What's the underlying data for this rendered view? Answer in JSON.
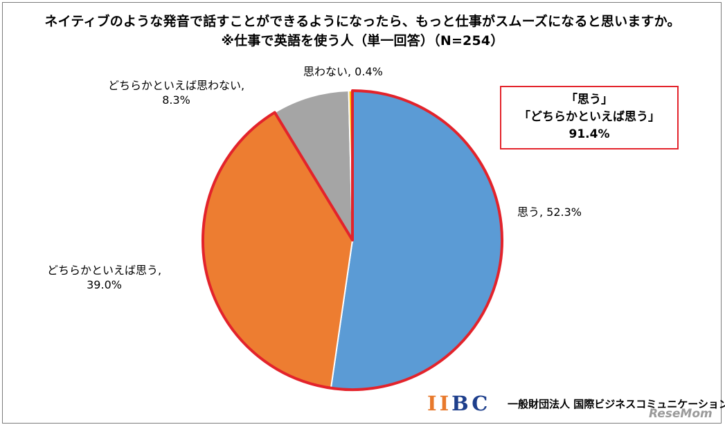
{
  "chart_data": {
    "type": "pie",
    "title": "ネイティブのような発音で話すことができるようになったら、もっと仕事がスムーズになると思いますか。",
    "subtitle": "※仕事で英語を使う人（単一回答）（N=254）",
    "slices": [
      {
        "label": "思う",
        "value": 52.3,
        "value_text": "52.3%",
        "color": "#5b9bd5"
      },
      {
        "label": "どちらかといえば思う",
        "value": 39.0,
        "value_text": "39.0%",
        "color": "#ed7d31"
      },
      {
        "label": "どちらかといえば思わない",
        "value": 8.3,
        "value_text": "8.3%",
        "color": "#a5a5a5"
      },
      {
        "label": "思わない",
        "value": 0.4,
        "value_text": "0.4%",
        "color": "#ffc000"
      }
    ],
    "highlight_color": "#e3232b",
    "callout": {
      "line1": "「思う」",
      "line2": "「どちらかといえば思う」",
      "line3": "91.4%"
    }
  },
  "labels": {
    "s0": "思う, 52.3%",
    "s1_line1": "どちらかといえば思う,",
    "s1_line2": "39.0%",
    "s2_line1": "どちらかといえば思わない,",
    "s2_line2": "8.3%",
    "s3": "思わない, 0.4%"
  },
  "footer": {
    "logo_text_1": "II",
    "logo_text_2": "BC",
    "organization": "一般財団法人 国際ビジネスコミュニケーション協会",
    "watermark": "ReseMom"
  }
}
